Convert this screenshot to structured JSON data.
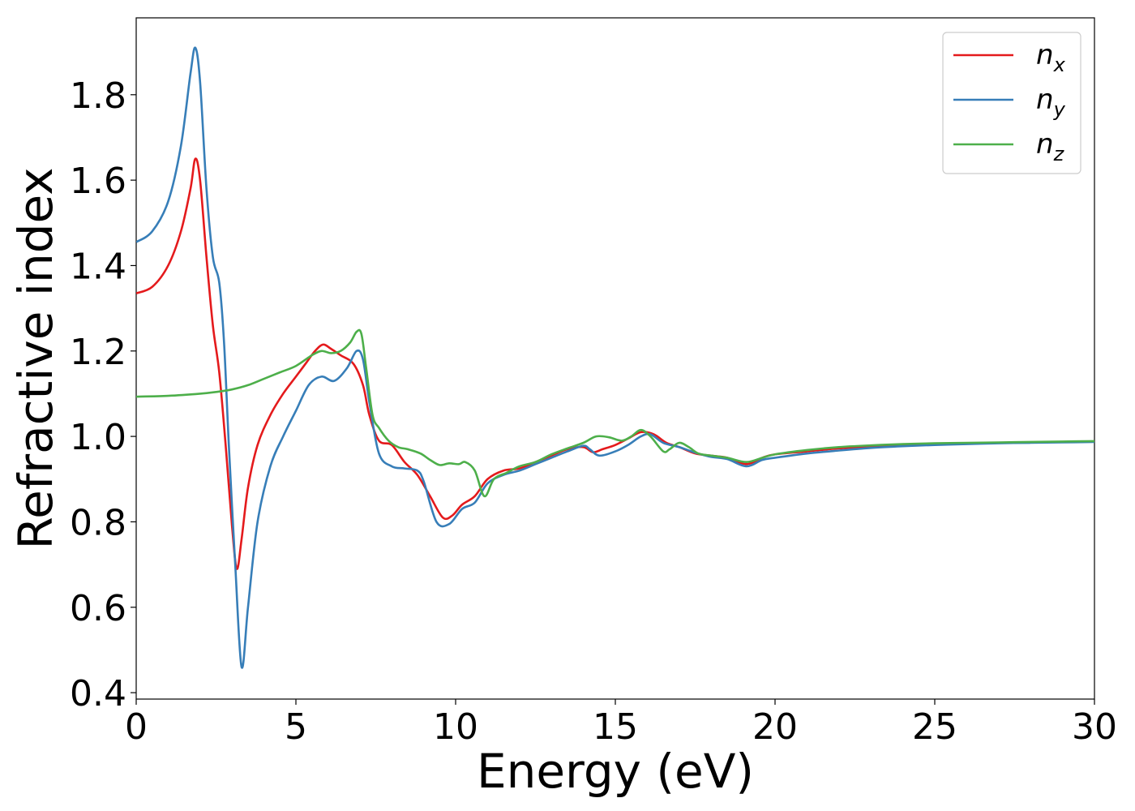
{
  "chart_data": {
    "type": "line",
    "title": "",
    "xlabel": "Energy (eV)",
    "ylabel": "Refractive index",
    "xlim": [
      0,
      30
    ],
    "ylim": [
      0.385,
      1.98
    ],
    "xticks": [
      0,
      5,
      10,
      15,
      20,
      25,
      30
    ],
    "yticks": [
      0.4,
      0.6,
      0.8,
      1.0,
      1.2,
      1.4,
      1.6,
      1.8
    ],
    "xtick_labels": [
      "0",
      "5",
      "10",
      "15",
      "20",
      "25",
      "30"
    ],
    "ytick_labels": [
      "0.4",
      "0.6",
      "0.8",
      "1.0",
      "1.2",
      "1.4",
      "1.6",
      "1.8"
    ],
    "grid": false,
    "legend_position": "top-right",
    "series": [
      {
        "name": "n_x",
        "legend_main": "n",
        "legend_sub": "x",
        "color": "#e41a1c",
        "x": [
          0,
          0.5,
          1.0,
          1.4,
          1.7,
          1.85,
          2.0,
          2.2,
          2.4,
          2.6,
          2.8,
          3.0,
          3.15,
          3.3,
          3.5,
          3.8,
          4.2,
          4.6,
          5.0,
          5.3,
          5.6,
          5.85,
          6.1,
          6.4,
          6.8,
          7.1,
          7.3,
          7.6,
          8.0,
          8.4,
          8.8,
          9.2,
          9.6,
          9.9,
          10.2,
          10.6,
          11.0,
          11.5,
          12.0,
          12.5,
          13.0,
          13.5,
          14.0,
          14.3,
          14.6,
          15.0,
          15.4,
          15.8,
          16.2,
          16.6,
          17.0,
          17.5,
          18.0,
          18.5,
          19.1,
          19.6,
          20.0,
          21,
          22,
          23,
          24,
          25,
          26,
          27,
          28,
          29,
          30
        ],
        "y": [
          1.335,
          1.35,
          1.4,
          1.48,
          1.58,
          1.65,
          1.6,
          1.42,
          1.26,
          1.15,
          0.98,
          0.79,
          0.69,
          0.76,
          0.88,
          0.98,
          1.05,
          1.1,
          1.14,
          1.17,
          1.2,
          1.215,
          1.205,
          1.19,
          1.17,
          1.12,
          1.05,
          0.99,
          0.98,
          0.94,
          0.91,
          0.86,
          0.81,
          0.815,
          0.84,
          0.86,
          0.9,
          0.92,
          0.925,
          0.94,
          0.955,
          0.97,
          0.975,
          0.963,
          0.97,
          0.98,
          0.995,
          1.01,
          1.005,
          0.985,
          0.975,
          0.96,
          0.955,
          0.95,
          0.935,
          0.95,
          0.958,
          0.965,
          0.972,
          0.976,
          0.979,
          0.982,
          0.984,
          0.985,
          0.986,
          0.987,
          0.988
        ]
      },
      {
        "name": "n_y",
        "legend_main": "n",
        "legend_sub": "y",
        "color": "#377eb8",
        "x": [
          0,
          0.5,
          1.0,
          1.4,
          1.7,
          1.85,
          2.0,
          2.2,
          2.4,
          2.6,
          2.75,
          2.9,
          3.1,
          3.3,
          3.5,
          3.8,
          4.2,
          4.6,
          5.0,
          5.4,
          5.8,
          6.2,
          6.6,
          6.9,
          7.1,
          7.3,
          7.6,
          8.0,
          8.4,
          8.8,
          9.0,
          9.4,
          9.8,
          10.2,
          10.6,
          11.0,
          11.5,
          12.0,
          12.5,
          13.0,
          13.5,
          14.0,
          14.2,
          14.5,
          15.0,
          15.4,
          15.8,
          16.1,
          16.5,
          17.0,
          17.5,
          18.0,
          18.5,
          19.1,
          19.6,
          20.0,
          21,
          22,
          23,
          24,
          25,
          26,
          27,
          28,
          29,
          30
        ],
        "y": [
          1.455,
          1.48,
          1.55,
          1.68,
          1.85,
          1.91,
          1.83,
          1.58,
          1.42,
          1.36,
          1.22,
          0.98,
          0.7,
          0.46,
          0.6,
          0.8,
          0.93,
          1.0,
          1.06,
          1.12,
          1.14,
          1.13,
          1.16,
          1.2,
          1.18,
          1.08,
          0.96,
          0.93,
          0.925,
          0.92,
          0.895,
          0.8,
          0.795,
          0.83,
          0.845,
          0.89,
          0.91,
          0.92,
          0.935,
          0.95,
          0.965,
          0.978,
          0.97,
          0.955,
          0.965,
          0.98,
          1.0,
          1.005,
          0.985,
          0.975,
          0.962,
          0.952,
          0.947,
          0.93,
          0.945,
          0.95,
          0.96,
          0.967,
          0.973,
          0.977,
          0.98,
          0.982,
          0.984,
          0.985,
          0.986,
          0.987
        ]
      },
      {
        "name": "n_z",
        "legend_main": "n",
        "legend_sub": "z",
        "color": "#4daf4a",
        "x": [
          0,
          1.0,
          2.0,
          2.5,
          3.0,
          3.5,
          4.0,
          4.5,
          5.0,
          5.5,
          5.8,
          6.1,
          6.4,
          6.7,
          6.9,
          7.05,
          7.2,
          7.4,
          7.6,
          7.9,
          8.2,
          8.5,
          8.9,
          9.2,
          9.5,
          9.8,
          10.1,
          10.3,
          10.6,
          10.9,
          11.2,
          11.6,
          12.0,
          12.5,
          13.0,
          13.5,
          14.0,
          14.4,
          14.8,
          15.2,
          15.5,
          15.8,
          16.1,
          16.5,
          16.7,
          17.0,
          17.3,
          17.6,
          18.0,
          18.5,
          19.1,
          19.6,
          20.0,
          21,
          22,
          23,
          24,
          25,
          26,
          27,
          28,
          29,
          30
        ],
        "y": [
          1.093,
          1.095,
          1.1,
          1.104,
          1.11,
          1.12,
          1.135,
          1.15,
          1.165,
          1.19,
          1.2,
          1.195,
          1.2,
          1.22,
          1.245,
          1.24,
          1.16,
          1.05,
          1.02,
          0.99,
          0.975,
          0.97,
          0.96,
          0.945,
          0.933,
          0.937,
          0.935,
          0.94,
          0.92,
          0.86,
          0.9,
          0.915,
          0.93,
          0.94,
          0.958,
          0.972,
          0.985,
          1.0,
          0.998,
          0.99,
          1.0,
          1.015,
          1.0,
          0.965,
          0.97,
          0.985,
          0.975,
          0.96,
          0.955,
          0.95,
          0.94,
          0.95,
          0.958,
          0.968,
          0.975,
          0.979,
          0.982,
          0.984,
          0.985,
          0.986,
          0.987,
          0.988,
          0.989
        ]
      }
    ]
  }
}
